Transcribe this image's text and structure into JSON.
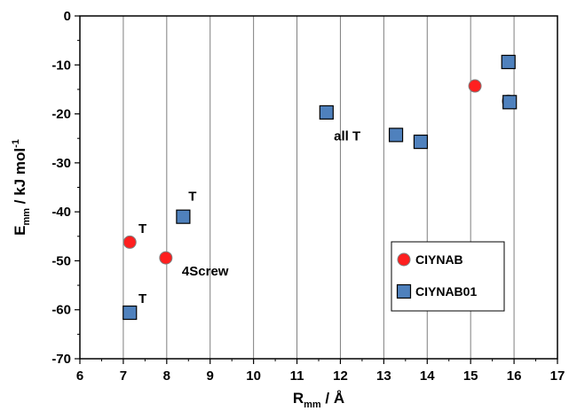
{
  "chart_data": {
    "type": "scatter",
    "xlabel": {
      "main": "R",
      "sub": "mm",
      "rest": " / Å"
    },
    "ylabel": {
      "main": "E",
      "sub": "mm",
      "rest": " / kJ mol",
      "sup": "-1"
    },
    "xlim": [
      6,
      17
    ],
    "ylim": [
      -70,
      0
    ],
    "xticks": [
      "6",
      "7",
      "8",
      "9",
      "10",
      "11",
      "12",
      "13",
      "14",
      "15",
      "16",
      "17"
    ],
    "yticks": [
      "0",
      "-10",
      "-20",
      "-30",
      "-40",
      "-50",
      "-60",
      "-70"
    ],
    "grid": "vertical",
    "legend_position": "right",
    "colors": {
      "CIYNAB": "#ff1f1f",
      "CIYNAB01": "#4f81bd"
    },
    "series": [
      {
        "name": "CIYNAB",
        "marker": "circle",
        "points": [
          {
            "x": 7.15,
            "y": -46.2
          },
          {
            "x": 7.98,
            "y": -49.4
          },
          {
            "x": 15.1,
            "y": -14.3
          },
          {
            "x": 15.87,
            "y": -17.4
          }
        ]
      },
      {
        "name": "CIYNAB01",
        "marker": "square",
        "points": [
          {
            "x": 7.15,
            "y": -60.6
          },
          {
            "x": 8.38,
            "y": -41.0
          },
          {
            "x": 11.68,
            "y": -19.7
          },
          {
            "x": 13.28,
            "y": -24.3
          },
          {
            "x": 13.85,
            "y": -25.7
          },
          {
            "x": 15.87,
            "y": -9.4
          },
          {
            "x": 15.9,
            "y": -17.6
          }
        ]
      }
    ],
    "annotations": [
      {
        "text": "T",
        "x": 7.35,
        "y": -44.3
      },
      {
        "text": "4Screw",
        "x": 8.35,
        "y": -53.0
      },
      {
        "text": "T",
        "x": 8.5,
        "y": -37.7
      },
      {
        "text": "T",
        "x": 7.35,
        "y": -58.6
      },
      {
        "text": "all T",
        "x": 11.85,
        "y": -25.4
      }
    ],
    "legend": [
      {
        "label": "CIYNAB",
        "marker": "circle"
      },
      {
        "label": "CIYNAB01",
        "marker": "square"
      }
    ]
  }
}
